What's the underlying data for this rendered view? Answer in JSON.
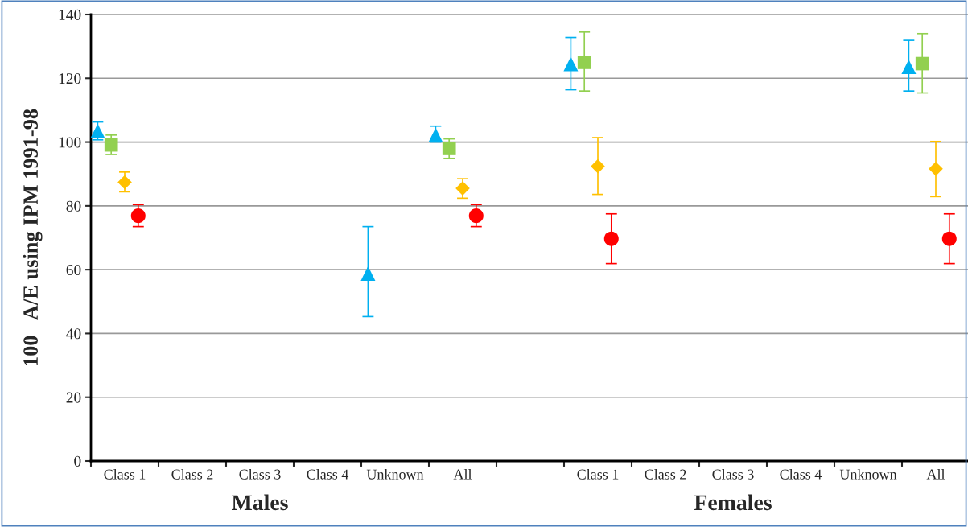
{
  "chart_data": {
    "type": "scatter",
    "ylabel": "100   A/E using IPM 1991-98",
    "categories": [
      "Class 1",
      "Class 2",
      "Class 3",
      "Class 4",
      "Unknown",
      "All",
      null,
      "Class 1",
      "Class 2",
      "Class 3",
      "Class 4",
      "Unknown",
      "All"
    ],
    "series": [
      {
        "color": "#00b0f0",
        "marker": "triangle",
        "values": [
          103.5,
          null,
          null,
          null,
          58.8,
          102.2,
          null,
          124.5,
          null,
          null,
          null,
          null,
          123.6
        ],
        "errors": [
          [
            100.7,
            106.3
          ],
          null,
          null,
          null,
          [
            45.3,
            73.5
          ],
          [
            100,
            105
          ],
          null,
          [
            116.4,
            132.8
          ],
          null,
          null,
          null,
          null,
          [
            116,
            131.9
          ]
        ]
      },
      {
        "color": "#92d050",
        "marker": "square",
        "values": [
          99.1,
          null,
          null,
          null,
          null,
          98,
          null,
          125,
          null,
          null,
          null,
          null,
          124.6
        ],
        "errors": [
          [
            96.1,
            102.2
          ],
          null,
          null,
          null,
          null,
          [
            94.9,
            101
          ],
          null,
          [
            116,
            134.5
          ],
          null,
          null,
          null,
          null,
          [
            115.4,
            134
          ]
        ]
      },
      {
        "color": "#ffc000",
        "marker": "diamond",
        "values": [
          87.4,
          null,
          null,
          null,
          null,
          85.5,
          null,
          92.4,
          null,
          null,
          null,
          null,
          91.6
        ],
        "errors": [
          [
            84.4,
            90.6
          ],
          null,
          null,
          null,
          null,
          [
            82.4,
            88.5
          ],
          null,
          [
            83.6,
            101.4
          ],
          null,
          null,
          null,
          null,
          [
            82.9,
            100.2
          ]
        ]
      },
      {
        "color": "#ff0000",
        "marker": "circle",
        "values": [
          76.9,
          null,
          null,
          null,
          null,
          76.9,
          null,
          69.7,
          null,
          null,
          null,
          null,
          69.7
        ],
        "errors": [
          [
            73.5,
            80.4
          ],
          null,
          null,
          null,
          null,
          [
            73.5,
            80.4
          ],
          null,
          [
            61.9,
            77.5
          ],
          null,
          null,
          null,
          null,
          [
            61.9,
            77.5
          ]
        ]
      }
    ],
    "ylim": [
      0,
      140
    ],
    "yticks": [
      0,
      20,
      40,
      60,
      80,
      100,
      120,
      140
    ],
    "grid": "y",
    "legend": false,
    "annotations": [
      "Males",
      "Females"
    ]
  }
}
